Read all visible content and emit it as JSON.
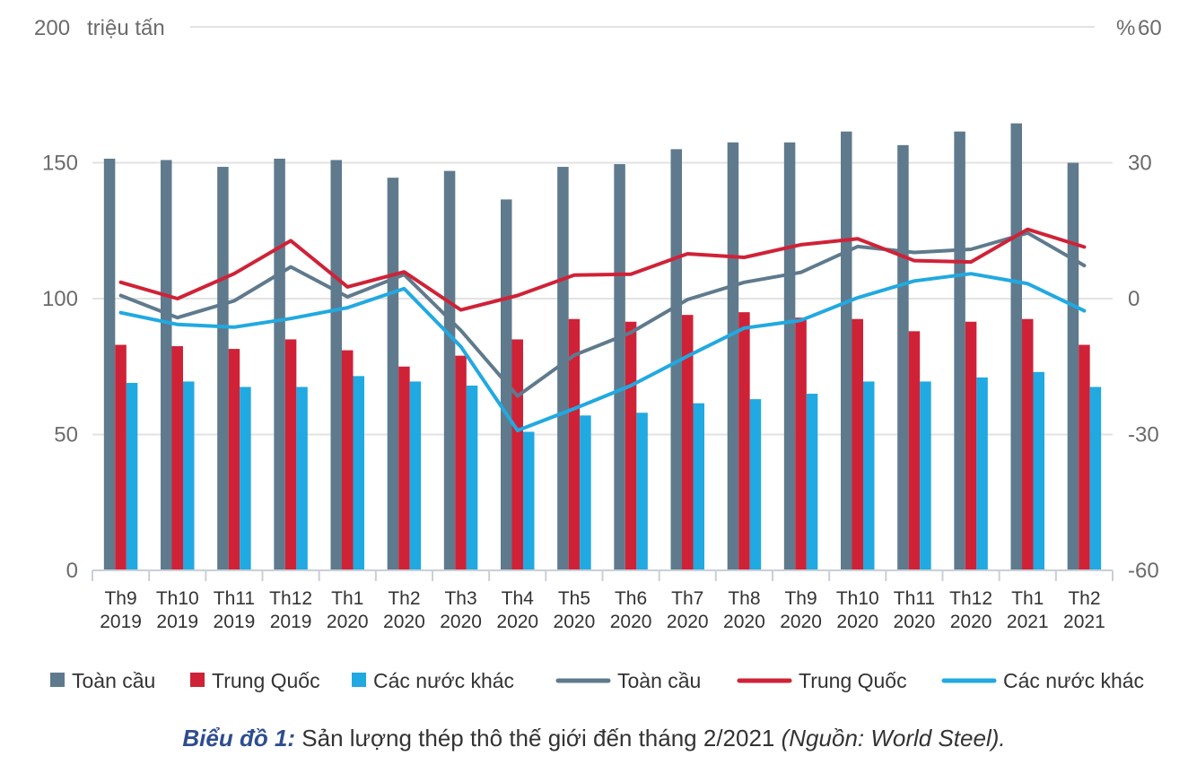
{
  "chart_data": {
    "type": "bar",
    "y_left_label": "200",
    "y_left_unit": "triệu tấn",
    "y_right_label": "60",
    "y_right_unit": "%",
    "ylim_left": [
      0,
      200
    ],
    "ylim_right": [
      -60,
      60
    ],
    "left_ticks": [
      "0",
      "50",
      "100",
      "150"
    ],
    "left_tick_values": [
      0,
      50,
      100,
      150
    ],
    "right_ticks": [
      "-60",
      "-30",
      "0",
      "30"
    ],
    "right_tick_values": [
      -60,
      -30,
      0,
      30
    ],
    "grid": true,
    "legend_position": "bottom",
    "categories": [
      {
        "month": "Th9",
        "year": "2019"
      },
      {
        "month": "Th10",
        "year": "2019"
      },
      {
        "month": "Th11",
        "year": "2019"
      },
      {
        "month": "Th12",
        "year": "2019"
      },
      {
        "month": "Th1",
        "year": "2020"
      },
      {
        "month": "Th2",
        "year": "2020"
      },
      {
        "month": "Th3",
        "year": "2020"
      },
      {
        "month": "Th4",
        "year": "2020"
      },
      {
        "month": "Th5",
        "year": "2020"
      },
      {
        "month": "Th6",
        "year": "2020"
      },
      {
        "month": "Th7",
        "year": "2020"
      },
      {
        "month": "Th8",
        "year": "2020"
      },
      {
        "month": "Th9",
        "year": "2020"
      },
      {
        "month": "Th10",
        "year": "2020"
      },
      {
        "month": "Th11",
        "year": "2020"
      },
      {
        "month": "Th12",
        "year": "2020"
      },
      {
        "month": "Th1",
        "year": "2021"
      },
      {
        "month": "Th2",
        "year": "2021"
      }
    ],
    "bar_series": [
      {
        "name": "Toàn cầu",
        "color": "#5f7a8d",
        "values": [
          151.5,
          151,
          148.5,
          151.5,
          151,
          144.5,
          147,
          136.5,
          148.5,
          149.5,
          155,
          157.5,
          157.5,
          161.5,
          156.5,
          161.5,
          164.5,
          150
        ]
      },
      {
        "name": "Trung Quốc",
        "color": "#cf2237",
        "values": [
          83,
          82.5,
          81.5,
          85,
          81,
          75,
          79,
          85,
          92.5,
          91.5,
          94,
          95,
          93,
          92.5,
          88,
          91.5,
          92.5,
          83
        ]
      },
      {
        "name": "Các nước khác",
        "color": "#21a9e1",
        "values": [
          69,
          69.5,
          67.5,
          67.5,
          71.5,
          69.5,
          68,
          51,
          57,
          58,
          61.5,
          63,
          65,
          69.5,
          69.5,
          71,
          73,
          67.5
        ]
      }
    ],
    "line_series": [
      {
        "name": "Toàn cầu",
        "color": "#5f7a8d",
        "values": [
          0.7,
          -4.2,
          -0.5,
          7,
          0.4,
          5.3,
          -7,
          -21.5,
          -12.5,
          -7.5,
          -0.2,
          3.6,
          5.8,
          11.5,
          10.2,
          10.9,
          14.5,
          7.3
        ]
      },
      {
        "name": "Trung Quốc",
        "color": "#cf2237",
        "values": [
          3.6,
          0,
          5.5,
          12.8,
          2.6,
          5.9,
          -2.5,
          0.7,
          5.2,
          5.4,
          9.9,
          9.1,
          11.9,
          13.2,
          8.4,
          8.1,
          15.3,
          11.4
        ]
      },
      {
        "name": "Các nước khác",
        "color": "#21a9e1",
        "values": [
          -3.1,
          -5.7,
          -6.3,
          -4.4,
          -2,
          2.2,
          -10.6,
          -29.1,
          -24.3,
          -19.2,
          -12.7,
          -6.5,
          -4.8,
          0.2,
          3.9,
          5.5,
          3.3,
          -2.7
        ]
      }
    ]
  },
  "caption": {
    "label": "Biểu đồ 1:",
    "text": " Sản lượng thép thô thế giới đến tháng 2/2021 ",
    "source": "(Nguồn: World Steel)."
  }
}
